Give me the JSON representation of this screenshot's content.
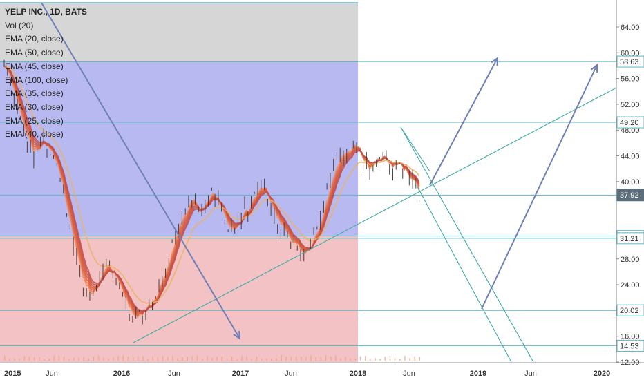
{
  "chart_data": {
    "type": "candlestick",
    "symbol": "YELP INC., 1D, BATS",
    "indicators": [
      "Vol (20)",
      "EMA (20, close)",
      "EMA (50, close)",
      "EMA (45, close)",
      "EMA (100, close)",
      "EMA (35, close)",
      "EMA (30, close)",
      "EMA (25, close)",
      "EMA (40, close)"
    ],
    "y_axis": {
      "ticks": [
        "64.00",
        "60.00",
        "56.00",
        "52.00",
        "48.00",
        "44.00",
        "40.00",
        "28.00",
        "24.00",
        "20.00",
        "16.00",
        "12.00"
      ],
      "ylim": [
        12,
        68
      ]
    },
    "x_axis": {
      "ticks": [
        "2015",
        "Jun",
        "2016",
        "Jun",
        "2017",
        "Jun",
        "2018",
        "Jun",
        "2019",
        "Jun",
        "2020"
      ]
    },
    "price_levels": [
      {
        "label": "58.63",
        "value": 58.63
      },
      {
        "label": "49.20",
        "value": 49.2
      },
      {
        "label": "37.90",
        "value": 37.9
      },
      {
        "label": "31.55",
        "value": 31.55
      },
      {
        "label": "31.21",
        "value": 31.21
      },
      {
        "label": "20.02",
        "value": 20.02
      },
      {
        "label": "14.53",
        "value": 14.53
      }
    ],
    "current_price": {
      "label": "37.92",
      "value": 37.92
    },
    "zones": [
      {
        "name": "gray",
        "color": "#d6d6d6"
      },
      {
        "name": "blue",
        "color": "#b9b9f1"
      },
      {
        "name": "red",
        "color": "#f3c2c4"
      }
    ],
    "colors": {
      "level_line": "#5bb7c2",
      "arrow": "#6f7fb8",
      "trend": "#3fa9a4",
      "candle": "#4a3b3b",
      "ema_warm": "#e56a42",
      "ema_tan": "#e7b36a",
      "price_tag": "#5c6e7c"
    }
  }
}
